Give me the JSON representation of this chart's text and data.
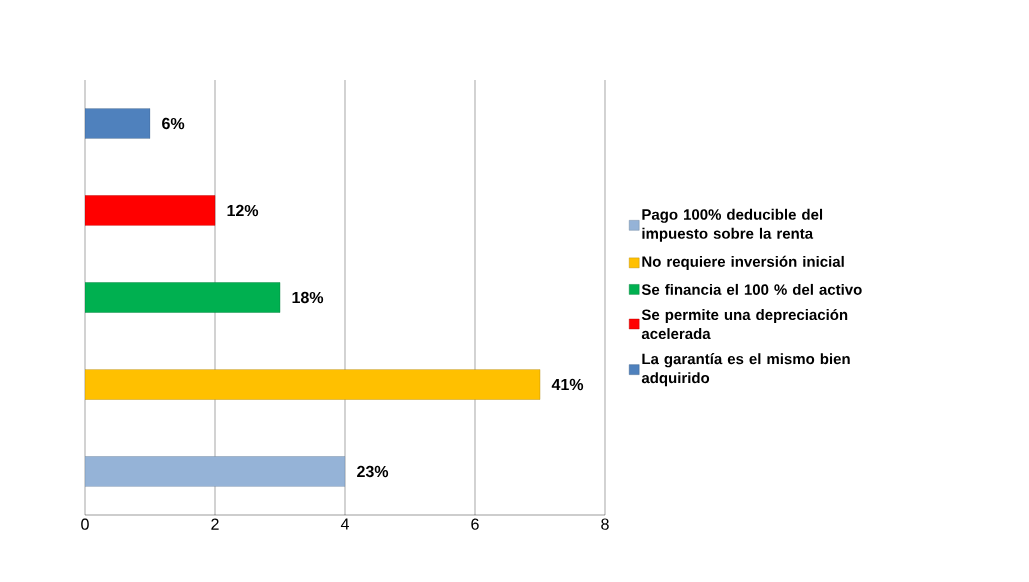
{
  "chart_data": {
    "type": "bar",
    "orientation": "horizontal",
    "categories": [
      null,
      null,
      null,
      null,
      null
    ],
    "series": [
      {
        "name": "Pago 100% deducible del impuesto sobre la renta",
        "color": "#95b3d7",
        "values": [
          null,
          null,
          null,
          null,
          4
        ]
      },
      {
        "name": "No requiere inversión inicial",
        "color": "#ffc000",
        "values": [
          null,
          null,
          null,
          7,
          null
        ]
      },
      {
        "name": "Se financia el 100 % del activo",
        "color": "#00b050",
        "values": [
          null,
          null,
          3,
          null,
          null
        ]
      },
      {
        "name": "Se permite una depreciación acelerada",
        "color": "#ff0000",
        "values": [
          null,
          2,
          null,
          null,
          null
        ]
      },
      {
        "name": "La garantía es el mismo bien adquirido",
        "color": "#4f81bd",
        "values": [
          1,
          null,
          null,
          null,
          null
        ]
      }
    ],
    "annotations": [
      {
        "text": "23%",
        "x": 4
      },
      {
        "text": "41%",
        "x": 7
      },
      {
        "text": "18%",
        "x": 3
      },
      {
        "text": "12%",
        "x": 2
      },
      {
        "text": "6%",
        "x": 1
      }
    ],
    "xlim": [
      0,
      8
    ],
    "xticks": [
      0,
      2,
      4,
      6,
      8
    ],
    "grid": "x",
    "legend": "right"
  }
}
